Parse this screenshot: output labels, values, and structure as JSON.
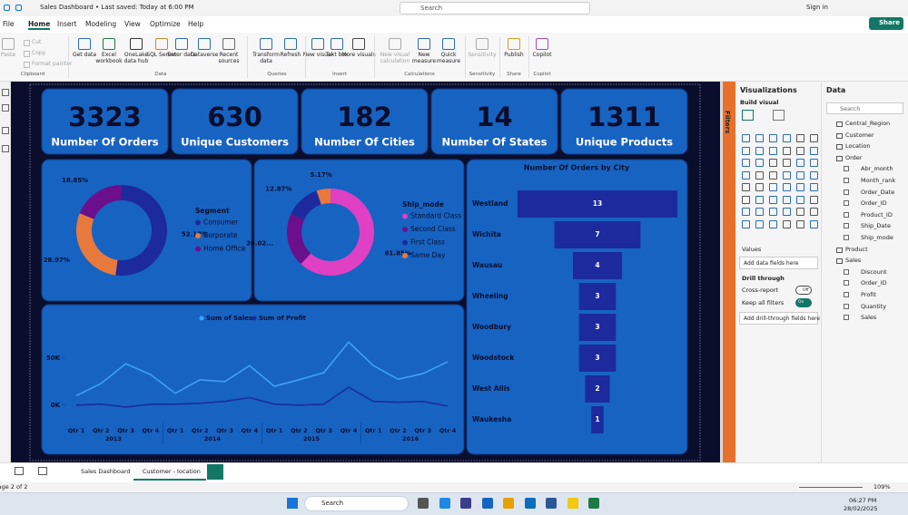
{
  "app": {
    "title": "Sales Dashboard • Last saved: Today at 6:00 PM",
    "search": "Search",
    "sign_in": "Sign in",
    "share": "Share"
  },
  "menu": [
    "File",
    "Home",
    "Insert",
    "Modeling",
    "View",
    "Optimize",
    "Help"
  ],
  "ribbon": [
    {
      "group": "Clipboard",
      "items": [
        "Paste",
        "Cut",
        "Copy",
        "Format painter"
      ]
    },
    {
      "group": "Data",
      "items": [
        "Get data",
        "Excel workbook",
        "OneLake data hub",
        "SQL Server",
        "Enter data",
        "Dataverse",
        "Recent sources"
      ]
    },
    {
      "group": "Queries",
      "items": [
        "Transform data",
        "Refresh"
      ]
    },
    {
      "group": "Insert",
      "items": [
        "New visual",
        "Text box",
        "More visuals"
      ]
    },
    {
      "group": "Calculations",
      "items": [
        "New visual calculation",
        "New measure",
        "Quick measure"
      ]
    },
    {
      "group": "Sensitivity",
      "items": [
        "Sensitivity"
      ]
    },
    {
      "group": "Share",
      "items": [
        "Publish"
      ]
    },
    {
      "group": "Copilot",
      "items": [
        "Copilot"
      ]
    }
  ],
  "cards": [
    {
      "value": 3323,
      "label": "Number Of Orders"
    },
    {
      "value": 630,
      "label": "Unique Customers"
    },
    {
      "value": 182,
      "label": "Number Of Cities"
    },
    {
      "value": 14,
      "label": "Number Of States"
    },
    {
      "value": 1311,
      "label": "Unique Products"
    }
  ],
  "chart_data": [
    {
      "type": "pie",
      "donut": true,
      "legend_title": "Segment",
      "categories": [
        "Consumer",
        "Corporate",
        "Home Office"
      ],
      "values": [
        52.17,
        28.97,
        18.85
      ],
      "value_labels": [
        "52.17%",
        "28.97%",
        "18.85%"
      ],
      "colors": [
        "#1c2a9e",
        "#e8793c",
        "#6b0f8c"
      ]
    },
    {
      "type": "pie",
      "donut": true,
      "legend_title": "Ship_mode",
      "categories": [
        "Standard Class",
        "Second Class",
        "First Class",
        "Same Day"
      ],
      "values": [
        61.85,
        20.02,
        12.87,
        5.17
      ],
      "value_labels": [
        "61.85%",
        "20.02...",
        "12.87%",
        "5.17%"
      ],
      "colors": [
        "#e040c4",
        "#6b0f8c",
        "#1c2a9e",
        "#e8793c"
      ]
    },
    {
      "type": "funnel",
      "title": "Number Of Orders  by City",
      "categories": [
        "Westland",
        "Wichita",
        "Wausau",
        "Wheeling",
        "Woodbury",
        "Woodstock",
        "West Allis",
        "Waukesha"
      ],
      "values": [
        13,
        7,
        4,
        3,
        3,
        3,
        2,
        1
      ],
      "color": "#1c2a9e"
    },
    {
      "type": "line",
      "categories": [
        "Qtr 1",
        "Qtr 2",
        "Qtr 3",
        "Qtr 4",
        "Qtr 1",
        "Qtr 2",
        "Qtr 3",
        "Qtr 4",
        "Qtr 1",
        "Qtr 2",
        "Qtr 3",
        "Qtr 4",
        "Qtr 1",
        "Qtr 2",
        "Qtr 3",
        "Qtr 4"
      ],
      "groups": [
        "2013",
        "2014",
        "2015",
        "2016"
      ],
      "series": [
        {
          "name": "Sum of Sales",
          "color": "#3fa0f5",
          "values": [
            10000,
            23000,
            44000,
            32500,
            12500,
            27000,
            25000,
            42000,
            20000,
            27000,
            34500,
            67000,
            42000,
            27500,
            33500,
            46000
          ]
        },
        {
          "name": "Sum of Profit",
          "color": "#1c2a9e",
          "values": [
            0,
            1000,
            -2000,
            1000,
            1000,
            2000,
            4000,
            8000,
            1000,
            0,
            1000,
            19000,
            4000,
            3000,
            4000,
            -1000
          ]
        }
      ],
      "ylim": [
        -5000,
        75000
      ],
      "yticks": [
        {
          "value": 0,
          "label": "0K"
        },
        {
          "value": 50000,
          "label": "50K"
        }
      ],
      "grid": false
    }
  ],
  "filters_tab": "Filters",
  "visualizations": {
    "title": "Visualizations",
    "build": "Build visual",
    "values": "Values",
    "values_well": "Add data fields here",
    "drill": "Drill through",
    "cross_report": "Cross-report",
    "cross_state": "Off",
    "keep_filters": "Keep all filters",
    "keep_state": "On",
    "drill_well": "Add drill-through fields here"
  },
  "data_pane": {
    "title": "Data",
    "search": "Search",
    "tables": [
      {
        "name": "Central_Region"
      },
      {
        "name": "Customer"
      },
      {
        "name": "Location"
      },
      {
        "name": "Order",
        "fields": [
          "Abr_month",
          "Month_rank",
          "Order_Date",
          "Order_ID",
          "Product_ID",
          "Ship_Date",
          "Ship_mode"
        ]
      },
      {
        "name": "Product"
      },
      {
        "name": "Sales",
        "fields": [
          "Discount",
          "Order_ID",
          "Profit",
          "Quantity",
          "Sales"
        ]
      }
    ]
  },
  "tabs": [
    "Sales Dashboard",
    "Customer - location"
  ],
  "status": {
    "page": "Page 2 of 2",
    "zoom": "109%"
  },
  "taskbar": {
    "search": "Search",
    "time": "06:27 PM",
    "date": "28/02/2025"
  }
}
